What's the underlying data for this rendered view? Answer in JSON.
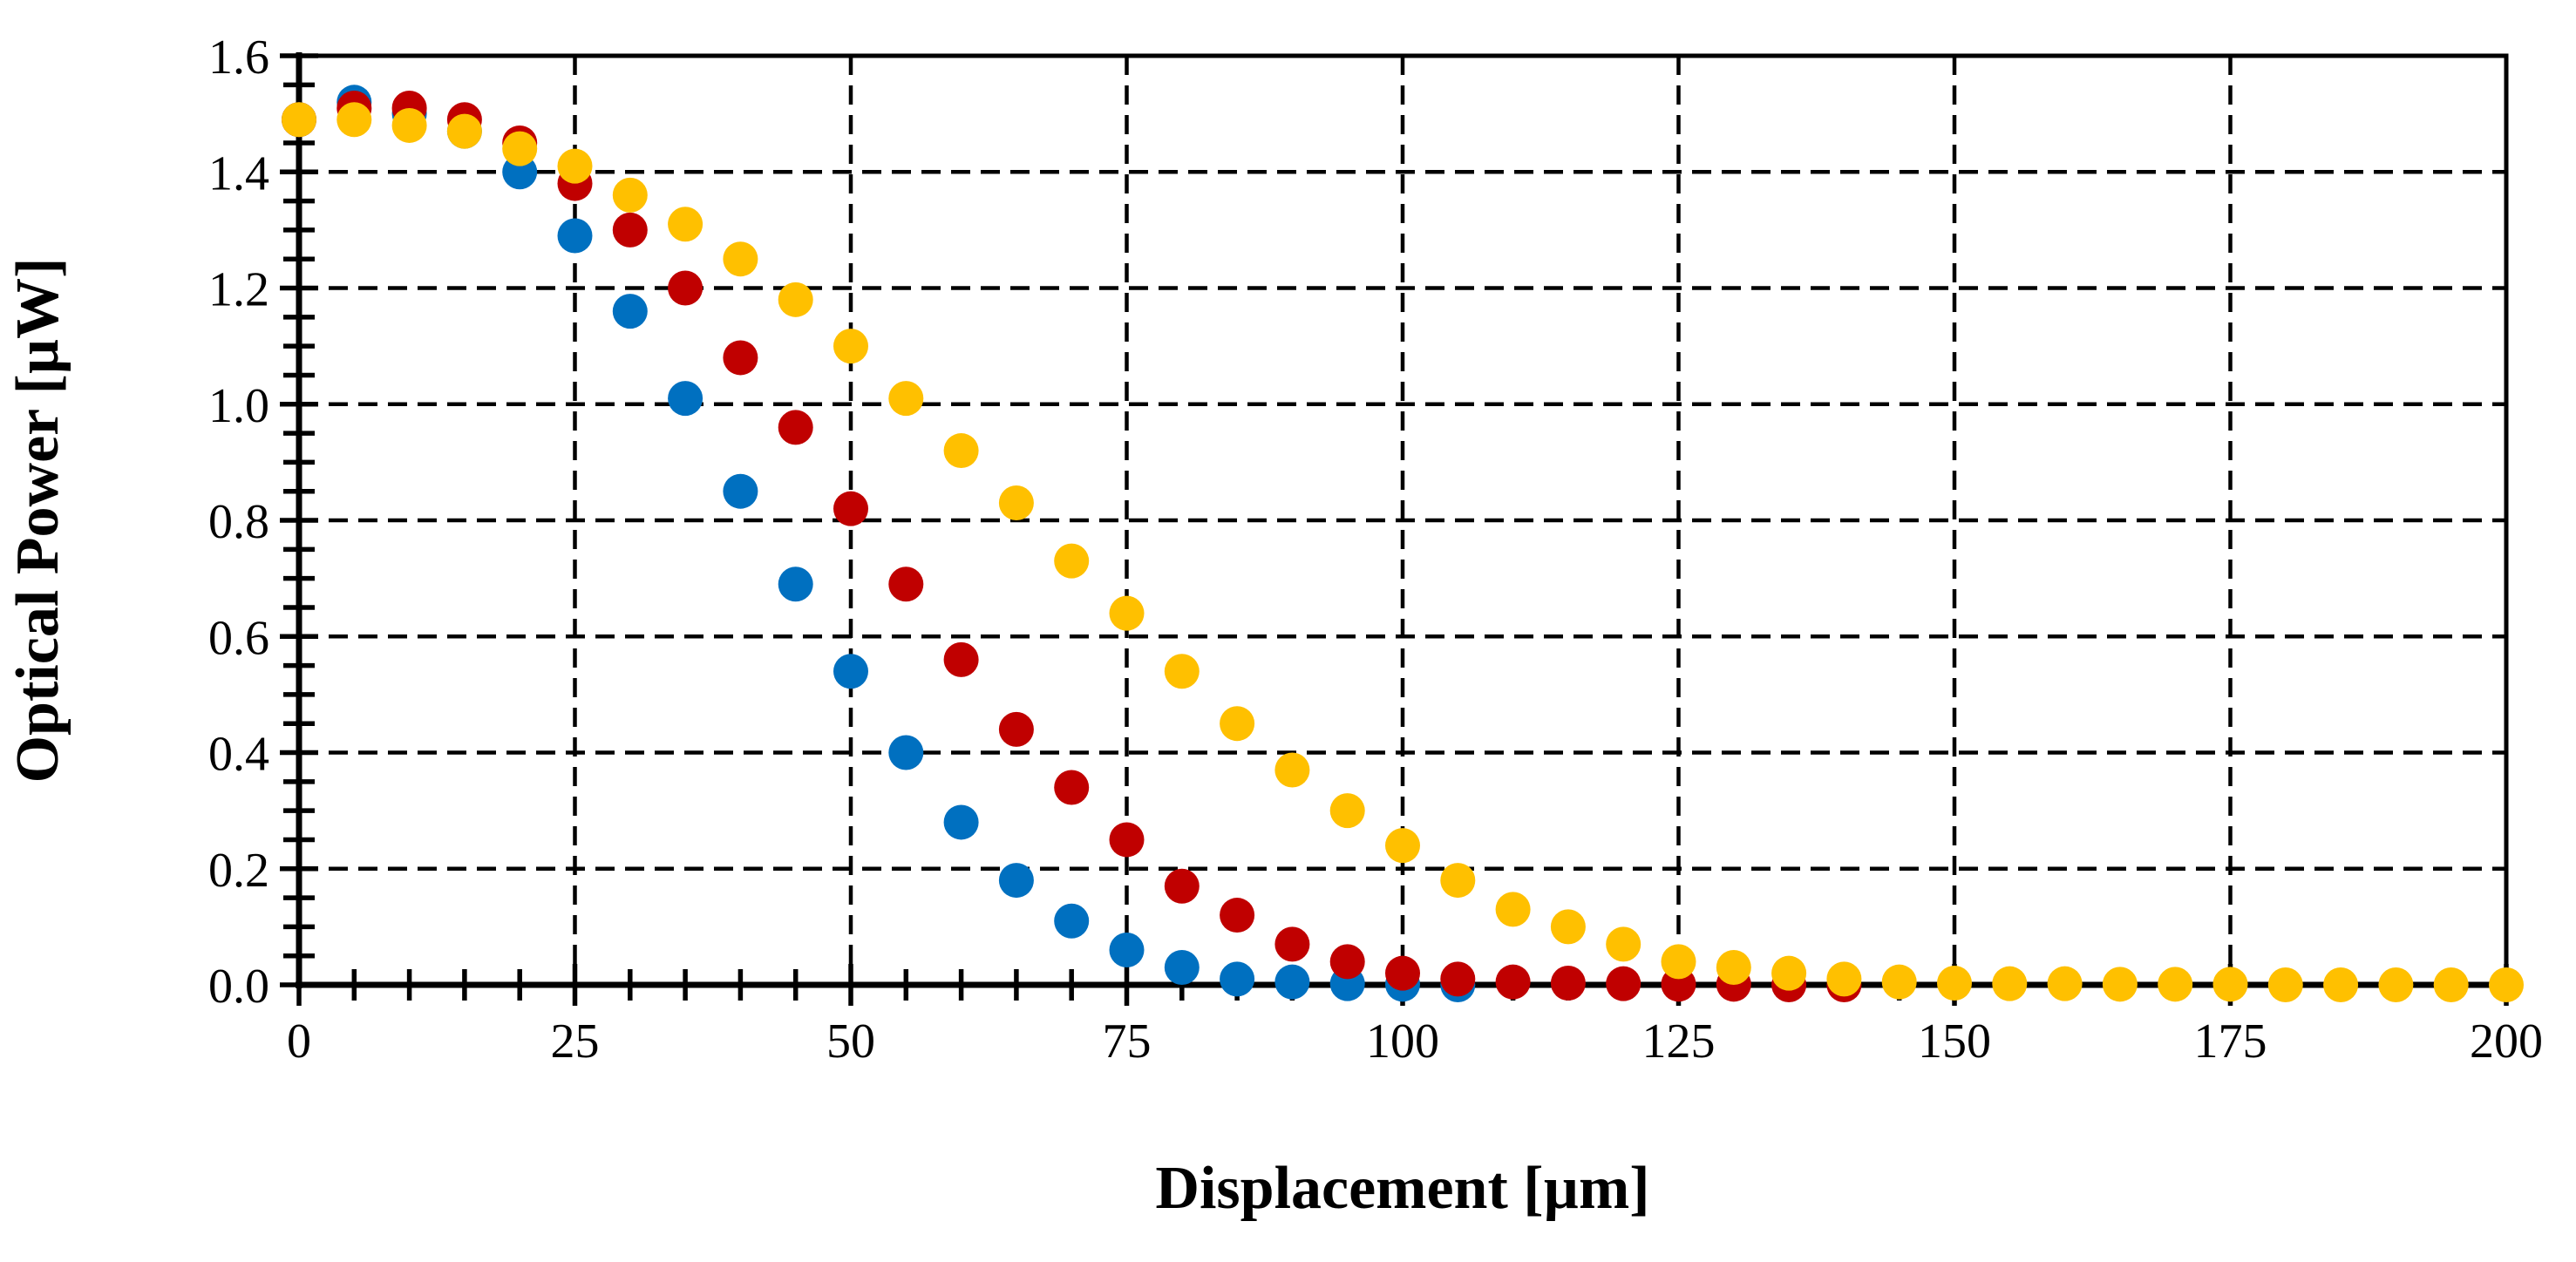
{
  "chart_data": {
    "type": "scatter",
    "xlabel": "Displacement [µm]",
    "ylabel": "Optical Power [µW]",
    "xlim": [
      0,
      200
    ],
    "ylim": [
      0,
      1.6
    ],
    "x_ticks": [
      0,
      25,
      50,
      75,
      100,
      125,
      150,
      175,
      200
    ],
    "y_ticks": [
      0.0,
      0.2,
      0.4,
      0.6,
      0.8,
      1.0,
      1.2,
      1.4,
      1.6
    ],
    "x_tick_labels": [
      "0",
      "25",
      "50",
      "75",
      "100",
      "125",
      "150",
      "175",
      "200"
    ],
    "y_tick_labels": [
      "0.0",
      "0.2",
      "0.4",
      "0.6",
      "0.8",
      "1.0",
      "1.2",
      "1.4",
      "1.6"
    ],
    "grid": "dashed, major",
    "legend": "none",
    "series": [
      {
        "color": "#0070C0",
        "x": [
          0,
          5,
          10,
          15,
          20,
          25,
          30,
          35,
          40,
          45,
          50,
          55,
          60,
          65,
          70,
          75,
          80,
          85,
          90,
          95,
          100,
          105
        ],
        "values": [
          1.49,
          1.52,
          1.5,
          1.47,
          1.4,
          1.29,
          1.16,
          1.01,
          0.85,
          0.69,
          0.54,
          0.4,
          0.28,
          0.18,
          0.11,
          0.06,
          0.03,
          0.01,
          0.005,
          0.002,
          0.001,
          0.0
        ]
      },
      {
        "color": "#C00000",
        "x": [
          0,
          5,
          10,
          15,
          20,
          25,
          30,
          35,
          40,
          45,
          50,
          55,
          60,
          65,
          70,
          75,
          80,
          85,
          90,
          95,
          100,
          105,
          110,
          115,
          120,
          125,
          130,
          135,
          140
        ],
        "values": [
          1.49,
          1.51,
          1.51,
          1.49,
          1.45,
          1.38,
          1.3,
          1.2,
          1.08,
          0.96,
          0.82,
          0.69,
          0.56,
          0.44,
          0.34,
          0.25,
          0.17,
          0.12,
          0.07,
          0.04,
          0.02,
          0.01,
          0.005,
          0.003,
          0.002,
          0.001,
          0.001,
          0.0,
          0.0
        ]
      },
      {
        "color": "#FFC000",
        "x": [
          0,
          5,
          10,
          15,
          20,
          25,
          30,
          35,
          40,
          45,
          50,
          55,
          60,
          65,
          70,
          75,
          80,
          85,
          90,
          95,
          100,
          105,
          110,
          115,
          120,
          125,
          130,
          135,
          140,
          145,
          150,
          155,
          160,
          165,
          170,
          175,
          180,
          185,
          190,
          195,
          200
        ],
        "values": [
          1.49,
          1.49,
          1.48,
          1.47,
          1.44,
          1.41,
          1.36,
          1.31,
          1.25,
          1.18,
          1.1,
          1.01,
          0.92,
          0.83,
          0.73,
          0.64,
          0.54,
          0.45,
          0.37,
          0.3,
          0.24,
          0.18,
          0.13,
          0.1,
          0.07,
          0.04,
          0.03,
          0.02,
          0.01,
          0.005,
          0.003,
          0.002,
          0.002,
          0.001,
          0.001,
          0.001,
          0.0,
          0.0,
          0.0,
          0.0,
          0.0
        ]
      }
    ]
  }
}
